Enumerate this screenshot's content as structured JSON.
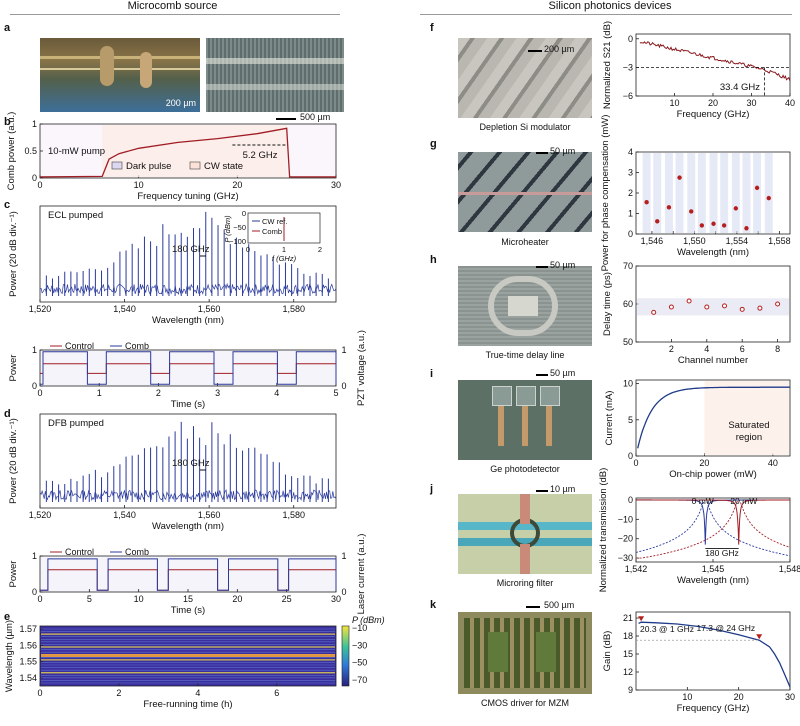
{
  "headers": {
    "left": "Microcomb source",
    "right": "Silicon photonics devices"
  },
  "panel_letters": [
    "a",
    "b",
    "c",
    "d",
    "e",
    "f",
    "g",
    "h",
    "i",
    "j",
    "k"
  ],
  "panel_a": {
    "scale1": "200 µm",
    "scale2": "500 µm"
  },
  "panel_b": {
    "pump": "10-mW pump",
    "span": "5.2 GHz",
    "legend": [
      "Dark pulse",
      "CW state"
    ]
  },
  "panel_c_label": "ECL pumped",
  "panel_c_inset": {
    "ylabel": "P (dBm)",
    "xlabel": "f (GHz)",
    "yticks": [
      "0",
      "−50",
      "−100"
    ],
    "xticks": [
      "0",
      "1",
      "2"
    ],
    "legend": [
      "CW ref.",
      "Comb"
    ]
  },
  "panel_c_marker": "180 GHz",
  "panel_c2_legend": [
    "Control",
    "Comb"
  ],
  "panel_d_label": "DFB pumped",
  "panel_d_marker": "180 GHz",
  "panel_d2_legend": [
    "Control",
    "Comb"
  ],
  "panel_e_colorbar": {
    "title": "P (dBm)",
    "ticks": [
      "−10",
      "−30",
      "−50",
      "−70"
    ]
  },
  "device_captions": {
    "f": "Depletion Si modulator",
    "g": "Microheater",
    "h": "True-time delay line",
    "i": "Ge photodetector",
    "j": "Microring filter",
    "k": "CMOS driver for MZM"
  },
  "device_scales": {
    "f": "200 µm",
    "g": "50 µm",
    "h": "50 µm",
    "i": "50 µm",
    "j": "10 µm",
    "k": "500 µm"
  },
  "panel_f_annot": "33.4 GHz",
  "panel_i_annot": [
    "Saturated",
    "region"
  ],
  "panel_j_annot": {
    "a": "0 mW",
    "b": "20 mW",
    "c": "180 GHz"
  },
  "panel_k_annot": {
    "a": "20.3 @ 1 GHz",
    "b": "17.3 @ 24 GHz"
  },
  "chart_data": [
    {
      "id": "b",
      "type": "line",
      "title": "",
      "xlabel": "Frequency tuning (GHz)",
      "ylabel": "Comb power (a.u.)",
      "xlim": [
        0,
        30
      ],
      "ylim": [
        0,
        1
      ],
      "xticks": [
        0,
        10,
        20,
        30
      ],
      "yticks": [
        0,
        0.5,
        1
      ],
      "x": [
        0,
        6.3,
        7,
        8,
        10,
        14,
        18,
        22,
        25,
        25.3,
        30
      ],
      "y": [
        0.02,
        0.03,
        0.35,
        0.45,
        0.55,
        0.66,
        0.73,
        0.82,
        0.92,
        0.02,
        0.02
      ]
    },
    {
      "id": "c",
      "type": "line",
      "title": "",
      "xlabel": "Wavelength (nm)",
      "ylabel": "Power (20 dB div.⁻¹)",
      "xlim": [
        1520,
        1590
      ],
      "xticks": [
        1520,
        1540,
        1560,
        1580
      ],
      "xtick_labels": [
        "1,520",
        "1,540",
        "1,560",
        "1,580"
      ]
    },
    {
      "id": "c2",
      "type": "line",
      "title": "",
      "xlabel": "Time (s)",
      "ylabel": "Power",
      "y2label": "PZT voltage (a.u.)",
      "xlim": [
        0,
        5
      ],
      "ylim": [
        0,
        1
      ],
      "xticks": [
        0,
        1,
        2,
        3,
        4,
        5
      ],
      "yticks": [
        0,
        1
      ],
      "y2ticks": [
        0,
        1
      ],
      "period": 1.07,
      "high_duration": 0.75,
      "start": 0.05,
      "series": [
        {
          "name": "Control",
          "low": 0.35,
          "high": 0.62
        },
        {
          "name": "Comb",
          "low": 0.05,
          "high": 0.95
        }
      ]
    },
    {
      "id": "d",
      "type": "line",
      "title": "",
      "xlabel": "Wavelength (nm)",
      "ylabel": "Power (20 dB div.⁻¹)",
      "xlim": [
        1520,
        1590
      ],
      "xticks": [
        1520,
        1540,
        1560,
        1580
      ],
      "xtick_labels": [
        "1,520",
        "1,540",
        "1,560",
        "1,580"
      ]
    },
    {
      "id": "d2",
      "type": "line",
      "title": "",
      "xlabel": "Time (s)",
      "ylabel": "Power",
      "y2label": "Laser current (a.u.)",
      "xlim": [
        0,
        30
      ],
      "ylim": [
        0,
        1
      ],
      "xticks": [
        0,
        5,
        10,
        15,
        20,
        25,
        30
      ],
      "yticks": [
        0,
        1
      ],
      "y2ticks": [
        0,
        1
      ],
      "period": 6.1,
      "high_duration": 5,
      "start": 0.8,
      "series": [
        {
          "name": "Control",
          "low": 0.05,
          "high": 0.62
        },
        {
          "name": "Comb",
          "low": 0.05,
          "high": 0.92
        }
      ]
    },
    {
      "id": "e",
      "type": "heatmap",
      "title": "",
      "xlabel": "Free-running time (h)",
      "ylabel": "Wavelength (µm)",
      "xlim": [
        0,
        7.5
      ],
      "ylim": [
        1.535,
        1.572
      ],
      "xticks": [
        0,
        2,
        4,
        6
      ],
      "yticks": [
        1.54,
        1.55,
        1.56,
        1.57
      ]
    },
    {
      "id": "f",
      "type": "line",
      "title": "",
      "xlabel": "Frequency (GHz)",
      "ylabel": "Normalized S21 (dB)",
      "xlim": [
        0,
        40
      ],
      "ylim": [
        -6,
        0.5
      ],
      "xticks": [
        10,
        20,
        30,
        40
      ],
      "yticks": [
        0,
        -3,
        -6
      ],
      "x": [
        1,
        4,
        8,
        12,
        16,
        20,
        24,
        28,
        32,
        33.4,
        36,
        40
      ],
      "y": [
        -0.2,
        -0.8,
        -1.2,
        -1.5,
        -1.8,
        -2.0,
        -2.2,
        -2.5,
        -2.8,
        -3.0,
        -3.3,
        -3.8
      ]
    },
    {
      "id": "g",
      "type": "scatter",
      "title": "",
      "xlabel": "Wavelength (nm)",
      "ylabel": "Power for phase compensation (mW)",
      "xlim": [
        1544.5,
        1559
      ],
      "ylim": [
        0,
        4
      ],
      "xticks": [
        1546,
        1548,
        1550,
        1552,
        1554,
        1556,
        1558
      ],
      "xtick_labels": [
        "1,546",
        "",
        "1,550",
        "",
        "1,554",
        "",
        "1,558"
      ],
      "yticks": [
        0,
        1,
        2,
        3,
        4
      ],
      "x": [
        1545.5,
        1546.5,
        1547.6,
        1548.6,
        1549.7,
        1550.7,
        1551.8,
        1552.8,
        1553.9,
        1554.9,
        1555.9,
        1557.0
      ],
      "y": [
        1.55,
        0.62,
        1.3,
        2.75,
        1.1,
        0.42,
        0.5,
        0.42,
        1.25,
        0.28,
        2.25,
        1.75
      ]
    },
    {
      "id": "h",
      "type": "scatter",
      "title": "",
      "xlabel": "Channel number",
      "ylabel": "Delay time (ps)",
      "xlim": [
        0,
        8.7
      ],
      "ylim": [
        50,
        70
      ],
      "xticks": [
        2,
        4,
        6,
        8
      ],
      "yticks": [
        50,
        60,
        70
      ],
      "x": [
        1,
        2,
        3,
        4,
        5,
        6,
        7,
        8
      ],
      "y": [
        57.8,
        59.2,
        60.8,
        59.2,
        59.5,
        58.6,
        58.9,
        60.0
      ]
    },
    {
      "id": "i",
      "type": "line",
      "title": "",
      "xlabel": "On-chip power (mW)",
      "ylabel": "Current (mA)",
      "xlim": [
        0,
        45
      ],
      "ylim": [
        0,
        10.5
      ],
      "xticks": [
        0,
        20,
        40
      ],
      "yticks": [
        0,
        5,
        10
      ]
    },
    {
      "id": "j",
      "type": "line",
      "title": "",
      "xlabel": "Wavelength (nm)",
      "ylabel": "Normalized transmission (dB)",
      "xlim": [
        1542,
        1548
      ],
      "ylim": [
        -32,
        1
      ],
      "xticks": [
        1542,
        1545,
        1548
      ],
      "xtick_labels": [
        "1,542",
        "1,545",
        "1,548"
      ],
      "yticks": [
        0,
        -10,
        -20,
        -30
      ],
      "series": [
        {
          "name": "0 mW",
          "center": 1544.7
        },
        {
          "name": "20 mW",
          "center": 1546.0
        }
      ]
    },
    {
      "id": "k",
      "type": "line",
      "title": "",
      "xlabel": "Frequency (GHz)",
      "ylabel": "Gain (dB)",
      "xlim": [
        0,
        30
      ],
      "ylim": [
        9,
        22
      ],
      "xticks": [
        10,
        20,
        30
      ],
      "yticks": [
        9,
        12,
        15,
        18,
        21
      ],
      "x": [
        0.5,
        1,
        4,
        8,
        12,
        16,
        20,
        24,
        26,
        27,
        28,
        29,
        30
      ],
      "y": [
        20.1,
        20.3,
        20.2,
        20.0,
        19.6,
        19.0,
        18.2,
        17.3,
        16.2,
        15.0,
        13.5,
        11.5,
        9.5
      ]
    }
  ]
}
